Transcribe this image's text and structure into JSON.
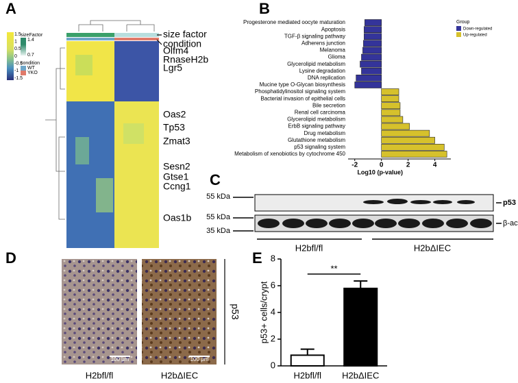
{
  "chart_data": [
    {
      "type": "hbar",
      "categories": [
        "Progesterone mediated oocyte maturation",
        "Apoptosis",
        "TGF-β signaling pathway",
        "Adherens junction",
        "Melanoma",
        "Glioma",
        "Glycerolipid metabolism",
        "Lysine degradation",
        "DNA replication",
        "Mucine type O-Glycan biosynthesis",
        "Phosphatidylinositol signaling system",
        "Bacterial invasion of epithelial cells",
        "Bile secretion",
        "Renal cell carcinoma",
        "Glycerolipid metabolism",
        "ErbB signaling pathway",
        "Drug metabolism",
        "Glutathione metabolism",
        "p53 signaling system",
        "Metabolism of xenobiotics by cytochrome 450"
      ],
      "series": [
        {
          "name": "Down-regulated",
          "color": "#34349a",
          "values": [
            -1.25,
            -1.3,
            -1.3,
            -1.35,
            -1.4,
            -1.5,
            -1.6,
            -1.5,
            -1.9,
            -2.0,
            null,
            null,
            null,
            null,
            null,
            null,
            null,
            null,
            null,
            null
          ]
        },
        {
          "name": "Up-regulated",
          "color": "#d6c12c",
          "values": [
            null,
            null,
            null,
            null,
            null,
            null,
            null,
            null,
            null,
            null,
            1.3,
            1.3,
            1.4,
            1.4,
            1.6,
            2.1,
            3.6,
            4.0,
            4.7,
            4.9
          ]
        }
      ],
      "legend_title": "Group",
      "x_label": "Log10 (p-value)",
      "xlim": [
        -2.5,
        5.2
      ],
      "xticks": [
        -2,
        0,
        2,
        4
      ]
    },
    {
      "type": "bar",
      "categories": [
        "H2bfl/fl",
        "H2bΔIEC"
      ],
      "values": [
        0.8,
        5.8
      ],
      "errors": [
        0.45,
        0.55
      ],
      "color": "#000000",
      "y_label": "p53+ cells/crypt",
      "annotation": "**",
      "ylim": [
        0,
        8
      ],
      "yticks": [
        0,
        2,
        4,
        6,
        8
      ]
    }
  ],
  "figure": {
    "panel_labels": [
      "A",
      "B",
      "C",
      "D",
      "E"
    ],
    "heatmap": {
      "row_labels": [
        "size factor",
        "condition",
        "Olfm4",
        "RnaseH2b",
        "Lgr5",
        "Oas2",
        "Tp53",
        "Zmat3",
        "Sesn2",
        "Gtse1",
        "Ccng1",
        "Oas1b"
      ],
      "legend": {
        "size_factor_title": "sizeFactor",
        "size_factor_ticks": [
          "1.4",
          "0.7"
        ],
        "condition_title": "condition",
        "conditions": [
          "WT",
          "YKO"
        ],
        "scale_ticks": [
          "1.5",
          "1",
          "0.5",
          "0",
          "-0.5",
          "-1",
          "-1.5"
        ]
      }
    },
    "blot": {
      "markers": [
        "55 kDa",
        "55 kDa",
        "35 kDa"
      ],
      "proteins": [
        "p53",
        "β-actin"
      ],
      "groups": [
        "H2bfl/fl",
        "H2bΔIEC"
      ]
    },
    "ihc": {
      "labels": [
        "H2bfl/fl",
        "H2bΔIEC"
      ],
      "stain": "p53",
      "scale_bars": [
        "100 μm",
        "100 μm"
      ]
    }
  }
}
